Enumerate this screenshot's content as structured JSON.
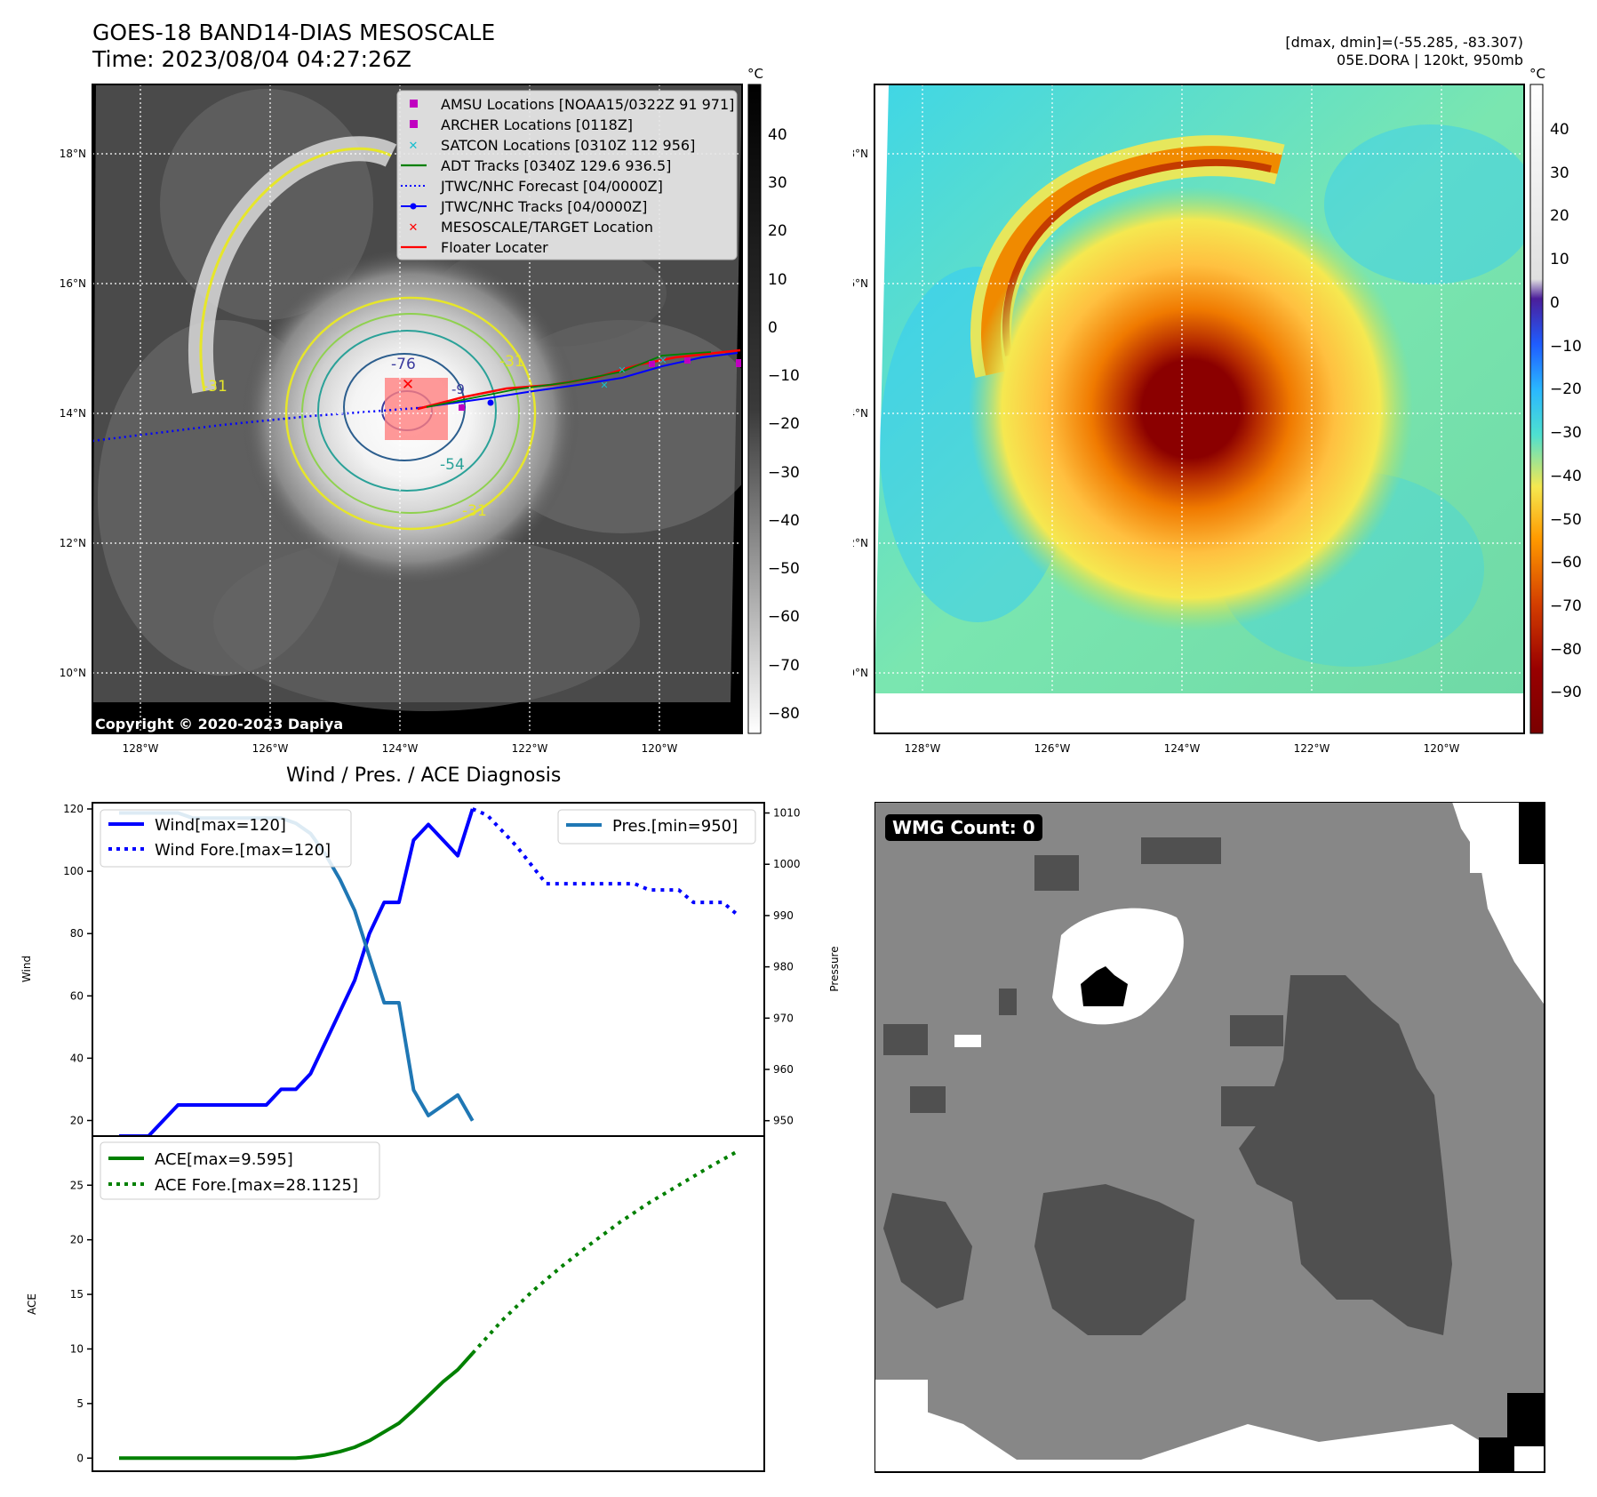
{
  "header": {
    "title_line1": "GOES-18 BAND14-DIAS MESOSCALE",
    "title_line2": "Time: 2023/08/04 04:27:26Z",
    "range_info": "[dmax, dmin]=(-55.285, -83.307)",
    "storm_info": "05E.DORA | 120kt, 950mb",
    "copyright": "Copyright © 2020-2023 Dapiya",
    "wmg_count": "WMG Count: 0",
    "diagnosis_title": "Wind / Pres. / ACE Diagnosis"
  },
  "colors": {
    "wind": "#0000ff",
    "pressure": "#1f77b4",
    "ace": "#008000",
    "forecast_track": "#0000ff",
    "floater": "#ff0000",
    "amsu": "#c000c0",
    "satcon": "#17becf",
    "adt": "#008000",
    "target": "#ff0000"
  },
  "map_axes": {
    "lon_ticks": [
      "128°W",
      "126°W",
      "124°W",
      "122°W",
      "120°W"
    ],
    "lat_ticks": [
      "18°N",
      "16°N",
      "14°N",
      "12°N",
      "10°N"
    ]
  },
  "ir_colorbar": {
    "unit": "°C",
    "ticks": [
      "40",
      "30",
      "20",
      "10",
      "0",
      "−10",
      "−20",
      "−30",
      "−40",
      "−50",
      "−60",
      "−70",
      "−80"
    ]
  },
  "color_colorbar": {
    "unit": "°C",
    "ticks": [
      "40",
      "30",
      "20",
      "10",
      "0",
      "−10",
      "−20",
      "−30",
      "−40",
      "−50",
      "−60",
      "−70",
      "−80",
      "−90"
    ]
  },
  "contour_labels": [
    "-76",
    "-54",
    "-31",
    "-31",
    "-31",
    "-9"
  ],
  "legend_map": [
    {
      "label": "AMSU Locations [NOAA15/0322Z 91 971]",
      "marker": "square",
      "color": "#c000c0"
    },
    {
      "label": "ARCHER Locations [0118Z]",
      "marker": "square",
      "color": "#c000c0"
    },
    {
      "label": "SATCON Locations [0310Z 112 956]",
      "marker": "x",
      "color": "#17becf"
    },
    {
      "label": "ADT Tracks [0340Z 129.6 936.5]",
      "marker": "line",
      "color": "#008000"
    },
    {
      "label": "JTWC/NHC Forecast [04/0000Z]",
      "marker": "dotted",
      "color": "#0000ff"
    },
    {
      "label": "JTWC/NHC Tracks [04/0000Z]",
      "marker": "line-dot",
      "color": "#0000ff"
    },
    {
      "label": "MESOSCALE/TARGET Location",
      "marker": "x",
      "color": "#ff0000"
    },
    {
      "label": "Floater Locater",
      "marker": "line",
      "color": "#ff0000"
    }
  ],
  "chart_data": [
    {
      "type": "line",
      "panel": "wind-pressure",
      "ylabel": "Wind",
      "ylabel_right": "Pressure",
      "ylim": [
        15,
        122
      ],
      "ylim_right": [
        947,
        1012
      ],
      "y_ticks": [
        20,
        40,
        60,
        80,
        100,
        120
      ],
      "y_ticks_right": [
        950,
        960,
        970,
        980,
        990,
        1000,
        1010
      ],
      "series": [
        {
          "name": "Wind[max=120]",
          "axis": "left",
          "style": "solid",
          "values": [
            [
              0,
              15
            ],
            [
              1,
              15
            ],
            [
              2,
              15
            ],
            [
              3,
              20
            ],
            [
              4,
              25
            ],
            [
              5,
              25
            ],
            [
              6,
              25
            ],
            [
              7,
              25
            ],
            [
              8,
              25
            ],
            [
              9,
              25
            ],
            [
              10,
              25
            ],
            [
              11,
              30
            ],
            [
              12,
              30
            ],
            [
              13,
              35
            ],
            [
              14,
              45
            ],
            [
              15,
              55
            ],
            [
              16,
              65
            ],
            [
              17,
              80
            ],
            [
              18,
              90
            ],
            [
              19,
              90
            ],
            [
              20,
              110
            ],
            [
              21,
              115
            ],
            [
              22,
              110
            ],
            [
              23,
              105
            ],
            [
              24,
              120
            ]
          ]
        },
        {
          "name": "Wind Fore.[max=120]",
          "axis": "left",
          "style": "dotted",
          "values": [
            [
              24,
              120
            ],
            [
              25,
              118
            ],
            [
              26,
              113
            ],
            [
              27,
              108
            ],
            [
              28,
              102
            ],
            [
              29,
              96
            ],
            [
              30,
              96
            ],
            [
              31,
              96
            ],
            [
              32,
              96
            ],
            [
              33,
              96
            ],
            [
              34,
              96
            ],
            [
              35,
              96
            ],
            [
              36,
              94
            ],
            [
              37,
              94
            ],
            [
              38,
              94
            ],
            [
              39,
              90
            ],
            [
              40,
              90
            ],
            [
              41,
              90
            ],
            [
              42,
              86
            ]
          ]
        },
        {
          "name": "Pres.[min=950]",
          "axis": "right",
          "style": "solid",
          "values": [
            [
              0,
              1010
            ],
            [
              1,
              1010
            ],
            [
              2,
              1010
            ],
            [
              3,
              1010
            ],
            [
              4,
              1010
            ],
            [
              5,
              1009
            ],
            [
              6,
              1009
            ],
            [
              7,
              1009
            ],
            [
              8,
              1009
            ],
            [
              9,
              1009
            ],
            [
              10,
              1009
            ],
            [
              11,
              1009
            ],
            [
              12,
              1008
            ],
            [
              13,
              1006
            ],
            [
              14,
              1002
            ],
            [
              15,
              997
            ],
            [
              16,
              991
            ],
            [
              17,
              982
            ],
            [
              18,
              973
            ],
            [
              19,
              973
            ],
            [
              20,
              956
            ],
            [
              21,
              951
            ],
            [
              22,
              953
            ],
            [
              23,
              955
            ],
            [
              24,
              950
            ]
          ]
        }
      ]
    },
    {
      "type": "line",
      "panel": "ace",
      "ylabel": "ACE",
      "ylim": [
        -1.2,
        29.5
      ],
      "y_ticks": [
        0,
        5,
        10,
        15,
        20,
        25
      ],
      "series": [
        {
          "name": "ACE[max=9.595]",
          "style": "solid",
          "values": [
            [
              0,
              0
            ],
            [
              1,
              0
            ],
            [
              2,
              0
            ],
            [
              3,
              0
            ],
            [
              4,
              0
            ],
            [
              5,
              0
            ],
            [
              6,
              0
            ],
            [
              7,
              0
            ],
            [
              8,
              0
            ],
            [
              9,
              0
            ],
            [
              10,
              0
            ],
            [
              11,
              0
            ],
            [
              12,
              0
            ],
            [
              13,
              0.1
            ],
            [
              14,
              0.3
            ],
            [
              15,
              0.6
            ],
            [
              16,
              1.0
            ],
            [
              17,
              1.6
            ],
            [
              18,
              2.4
            ],
            [
              19,
              3.2
            ],
            [
              20,
              4.4
            ],
            [
              21,
              5.7
            ],
            [
              22,
              7.0
            ],
            [
              23,
              8.1
            ],
            [
              24,
              9.595
            ]
          ]
        },
        {
          "name": "ACE Fore.[max=28.1125]",
          "style": "dotted",
          "values": [
            [
              24,
              9.595
            ],
            [
              26,
              12.6
            ],
            [
              28,
              15.2
            ],
            [
              30,
              17.5
            ],
            [
              32,
              19.6
            ],
            [
              34,
              21.6
            ],
            [
              36,
              23.4
            ],
            [
              38,
              25.0
            ],
            [
              40,
              26.6
            ],
            [
              42,
              28.1125
            ]
          ]
        }
      ]
    }
  ]
}
